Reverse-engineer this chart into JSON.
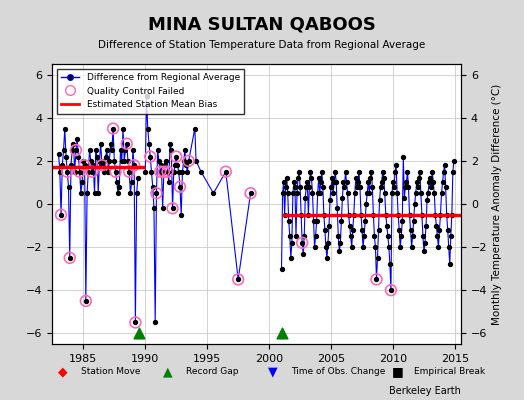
{
  "title": "MINA SULTAN QABOOS",
  "subtitle": "Difference of Station Temperature Data from Regional Average",
  "ylabel": "Monthly Temperature Anomaly Difference (°C)",
  "xlabel": "",
  "xlim": [
    1982.5,
    2015.5
  ],
  "ylim": [
    -6.5,
    6.5
  ],
  "yticks": [
    -6,
    -4,
    -2,
    0,
    2,
    4,
    6
  ],
  "xticks": [
    1985,
    1990,
    1995,
    2000,
    2005,
    2010,
    2015
  ],
  "background_color": "#e8e8e8",
  "plot_bg_color": "#ffffff",
  "bias_segments": [
    {
      "x_start": 1982.5,
      "x_end": 1990.0,
      "y": 1.7
    },
    {
      "x_start": 2001.0,
      "x_end": 2015.5,
      "y": -0.5
    }
  ],
  "record_gaps": [
    1989.5,
    2001.0
  ],
  "segment1_data": {
    "years": [
      1983.0,
      1983.1,
      1983.2,
      1983.3,
      1983.4,
      1983.5,
      1983.6,
      1983.7,
      1983.8,
      1983.9,
      1984.0,
      1984.1,
      1984.2,
      1984.3,
      1984.4,
      1984.5,
      1984.6,
      1984.7,
      1984.8,
      1984.9,
      1985.0,
      1985.1,
      1985.2,
      1985.3,
      1985.4,
      1985.5,
      1985.6,
      1985.7,
      1985.8,
      1985.9,
      1986.0,
      1986.1,
      1986.2,
      1986.3,
      1986.4,
      1986.5,
      1986.6,
      1986.7,
      1986.8,
      1986.9,
      1987.0,
      1987.1,
      1987.2,
      1987.3,
      1987.4,
      1987.5,
      1987.6,
      1987.7,
      1987.8,
      1987.9,
      1988.0,
      1988.1,
      1988.2,
      1988.3,
      1988.4,
      1988.5,
      1988.6,
      1988.7,
      1988.8,
      1988.9,
      1989.0,
      1989.1,
      1989.2,
      1989.3,
      1989.4
    ],
    "values": [
      2.3,
      1.5,
      -0.5,
      1.8,
      2.5,
      3.5,
      2.2,
      1.5,
      0.8,
      -2.5,
      1.8,
      2.5,
      2.8,
      1.5,
      2.5,
      3.0,
      2.2,
      1.5,
      0.5,
      1.0,
      2.0,
      1.8,
      -4.5,
      0.5,
      1.5,
      2.5,
      2.0,
      1.5,
      1.8,
      0.5,
      2.5,
      2.2,
      0.5,
      2.0,
      2.8,
      1.8,
      2.0,
      1.5,
      2.2,
      2.5,
      1.5,
      2.0,
      2.8,
      2.5,
      3.5,
      2.0,
      1.5,
      1.0,
      0.5,
      0.8,
      2.5,
      2.0,
      3.5,
      2.0,
      2.5,
      2.8,
      2.0,
      1.5,
      0.5,
      1.0,
      2.5,
      1.8,
      -5.5,
      0.5,
      1.2
    ],
    "qc_failed": [
      0,
      0,
      1,
      0,
      0,
      0,
      0,
      1,
      0,
      1,
      0,
      0,
      0,
      0,
      1,
      0,
      0,
      1,
      0,
      0,
      0,
      1,
      1,
      0,
      0,
      0,
      0,
      1,
      0,
      0,
      0,
      0,
      0,
      0,
      0,
      1,
      0,
      0,
      0,
      0,
      0,
      0,
      0,
      0,
      1,
      0,
      1,
      0,
      0,
      0,
      0,
      0,
      0,
      0,
      0,
      1,
      0,
      1,
      0,
      0,
      0,
      1,
      1,
      0,
      0
    ]
  },
  "segment2_data": {
    "years": [
      1990.0,
      1990.1,
      1990.2,
      1990.3,
      1990.4,
      1990.5,
      1990.6,
      1990.7,
      1990.8,
      1990.9,
      1991.0,
      1991.1,
      1991.2,
      1991.3,
      1991.4,
      1991.5,
      1991.6,
      1991.7,
      1991.8,
      1991.9,
      1992.0,
      1992.1,
      1992.2,
      1992.3,
      1992.4,
      1992.5,
      1992.6,
      1992.7,
      1992.8,
      1992.9,
      1993.0,
      1993.1,
      1993.2,
      1993.3,
      1993.4,
      1993.5,
      1994.0,
      1994.1,
      1994.5,
      1995.5,
      1996.5,
      1997.5,
      1998.5
    ],
    "values": [
      1.5,
      5.0,
      3.5,
      2.8,
      2.2,
      1.5,
      0.8,
      -0.2,
      -5.5,
      0.5,
      2.5,
      2.0,
      1.5,
      1.8,
      -0.2,
      1.5,
      1.8,
      2.0,
      1.5,
      1.0,
      2.8,
      2.5,
      -0.2,
      1.5,
      1.8,
      2.2,
      1.8,
      1.5,
      0.8,
      -0.5,
      1.5,
      2.0,
      2.5,
      1.8,
      1.5,
      2.0,
      3.5,
      2.0,
      1.5,
      0.5,
      1.5,
      -3.5,
      0.5
    ],
    "qc_failed": [
      0,
      0,
      0,
      0,
      1,
      0,
      0,
      0,
      0,
      1,
      0,
      0,
      1,
      0,
      0,
      1,
      0,
      0,
      1,
      0,
      0,
      0,
      1,
      0,
      0,
      1,
      0,
      0,
      1,
      0,
      0,
      0,
      0,
      0,
      0,
      1,
      0,
      0,
      0,
      0,
      1,
      1,
      1
    ]
  },
  "segment3_data": {
    "years": [
      2001.0,
      2001.083,
      2001.167,
      2001.25,
      2001.333,
      2001.417,
      2001.5,
      2001.583,
      2001.667,
      2001.75,
      2001.833,
      2001.917,
      2002.0,
      2002.083,
      2002.167,
      2002.25,
      2002.333,
      2002.417,
      2002.5,
      2002.583,
      2002.667,
      2002.75,
      2002.833,
      2002.917,
      2003.0,
      2003.083,
      2003.167,
      2003.25,
      2003.333,
      2003.417,
      2003.5,
      2003.583,
      2003.667,
      2003.75,
      2003.833,
      2003.917,
      2004.0,
      2004.083,
      2004.167,
      2004.25,
      2004.333,
      2004.417,
      2004.5,
      2004.583,
      2004.667,
      2004.75,
      2004.833,
      2004.917,
      2005.0,
      2005.083,
      2005.167,
      2005.25,
      2005.333,
      2005.417,
      2005.5,
      2005.583,
      2005.667,
      2005.75,
      2005.833,
      2005.917,
      2006.0,
      2006.083,
      2006.167,
      2006.25,
      2006.333,
      2006.417,
      2006.5,
      2006.583,
      2006.667,
      2006.75,
      2006.833,
      2006.917,
      2007.0,
      2007.083,
      2007.167,
      2007.25,
      2007.333,
      2007.417,
      2007.5,
      2007.583,
      2007.667,
      2007.75,
      2007.833,
      2007.917,
      2008.0,
      2008.083,
      2008.167,
      2008.25,
      2008.333,
      2008.417,
      2008.5,
      2008.583,
      2008.667,
      2008.75,
      2008.833,
      2008.917,
      2009.0,
      2009.083,
      2009.167,
      2009.25,
      2009.333,
      2009.417,
      2009.5,
      2009.583,
      2009.667,
      2009.75,
      2009.833,
      2009.917,
      2010.0,
      2010.083,
      2010.167,
      2010.25,
      2010.333,
      2010.417,
      2010.5,
      2010.583,
      2010.667,
      2010.75,
      2010.833,
      2010.917,
      2011.0,
      2011.083,
      2011.167,
      2011.25,
      2011.333,
      2011.417,
      2011.5,
      2011.583,
      2011.667,
      2011.75,
      2011.833,
      2011.917,
      2012.0,
      2012.083,
      2012.167,
      2012.25,
      2012.333,
      2012.417,
      2012.5,
      2012.583,
      2012.667,
      2012.75,
      2012.833,
      2012.917,
      2013.0,
      2013.083,
      2013.167,
      2013.25,
      2013.333,
      2013.417,
      2013.5,
      2013.583,
      2013.667,
      2013.75,
      2013.833,
      2013.917,
      2014.0,
      2014.083,
      2014.167,
      2014.25,
      2014.333,
      2014.417,
      2014.5,
      2014.583,
      2014.667,
      2014.75,
      2014.833,
      2014.917
    ],
    "values": [
      -3.0,
      0.5,
      1.0,
      -0.5,
      0.8,
      1.2,
      0.5,
      -0.8,
      -1.5,
      -2.5,
      -1.8,
      0.5,
      1.0,
      0.8,
      -1.5,
      0.5,
      1.2,
      1.5,
      0.8,
      -0.5,
      -1.8,
      -2.3,
      -1.5,
      0.3,
      0.8,
      1.0,
      -0.5,
      0.8,
      1.5,
      1.2,
      0.5,
      -0.8,
      -2.0,
      -1.5,
      -0.8,
      0.5,
      1.2,
      0.5,
      1.0,
      1.5,
      0.8,
      -0.5,
      -1.2,
      -2.0,
      -2.5,
      -1.8,
      -1.0,
      0.2,
      0.8,
      1.2,
      0.5,
      1.0,
      1.5,
      1.0,
      -0.2,
      -1.5,
      -2.2,
      -1.8,
      -0.8,
      0.3,
      1.0,
      0.8,
      1.5,
      1.0,
      0.5,
      -0.5,
      -1.0,
      -1.5,
      -2.0,
      -1.2,
      -0.5,
      0.5,
      1.2,
      0.8,
      1.0,
      1.5,
      0.8,
      -0.5,
      -1.2,
      -2.0,
      -1.5,
      -0.8,
      0.0,
      0.5,
      1.0,
      0.5,
      1.2,
      1.5,
      0.8,
      -0.5,
      -1.5,
      -2.0,
      -3.5,
      -2.5,
      -1.2,
      0.2,
      0.8,
      1.0,
      1.5,
      1.2,
      0.5,
      -0.5,
      -1.0,
      -1.5,
      -2.0,
      -2.8,
      -4.0,
      0.5,
      1.0,
      0.8,
      1.5,
      1.8,
      0.5,
      -0.5,
      -1.2,
      -2.0,
      -1.5,
      -0.8,
      2.2,
      0.3,
      0.8,
      1.0,
      1.5,
      0.8,
      -0.5,
      -1.2,
      -2.0,
      -1.5,
      -0.8,
      0.0,
      0.5,
      1.0,
      0.8,
      1.2,
      1.5,
      0.5,
      -0.5,
      -1.5,
      -2.2,
      -1.8,
      -1.0,
      0.2,
      0.5,
      1.0,
      1.2,
      0.8,
      1.5,
      1.0,
      0.5,
      -0.5,
      -1.0,
      -1.5,
      -2.0,
      -1.2,
      -0.5,
      0.5,
      1.0,
      1.5,
      1.8,
      0.8,
      -0.5,
      -1.2,
      -2.0,
      -2.8,
      -1.5,
      -0.5,
      1.5,
      2.0
    ],
    "qc_failed": [
      0,
      0,
      0,
      0,
      0,
      0,
      0,
      0,
      0,
      0,
      0,
      0,
      0,
      0,
      0,
      0,
      0,
      0,
      0,
      0,
      1,
      0,
      0,
      0,
      0,
      0,
      0,
      0,
      0,
      0,
      0,
      0,
      0,
      0,
      0,
      0,
      0,
      0,
      0,
      0,
      0,
      0,
      0,
      0,
      0,
      0,
      0,
      0,
      0,
      0,
      0,
      0,
      0,
      0,
      0,
      0,
      0,
      0,
      0,
      0,
      0,
      0,
      0,
      0,
      0,
      0,
      0,
      0,
      0,
      0,
      0,
      0,
      0,
      0,
      0,
      0,
      0,
      0,
      0,
      0,
      0,
      0,
      0,
      0,
      0,
      0,
      0,
      0,
      0,
      0,
      0,
      0,
      1,
      0,
      0,
      0,
      0,
      0,
      0,
      0,
      0,
      0,
      0,
      0,
      0,
      0,
      1,
      0,
      0,
      0,
      0,
      0,
      0,
      0,
      0,
      0,
      0,
      0,
      0,
      0,
      0,
      0,
      0,
      0,
      0,
      0,
      0,
      0,
      0,
      0,
      0,
      0,
      0,
      0,
      0,
      0,
      0,
      0,
      0,
      0,
      0,
      0,
      0,
      0,
      0,
      0,
      0,
      0,
      0,
      0,
      0,
      0,
      0,
      0,
      0,
      0,
      0,
      0,
      0,
      0,
      0,
      0,
      0,
      0,
      0,
      0,
      0,
      0
    ]
  },
  "line_color": "#0000ff",
  "dot_color": "#000000",
  "qc_color": "#ff69b4",
  "bias_color": "#ff0000",
  "gap_color": "#008000",
  "station_move_color": "#ff0000",
  "time_obs_color": "#0000ff",
  "empirical_break_color": "#000000",
  "berkeley_earth_text": "Berkeley Earth",
  "font_family": "sans-serif"
}
